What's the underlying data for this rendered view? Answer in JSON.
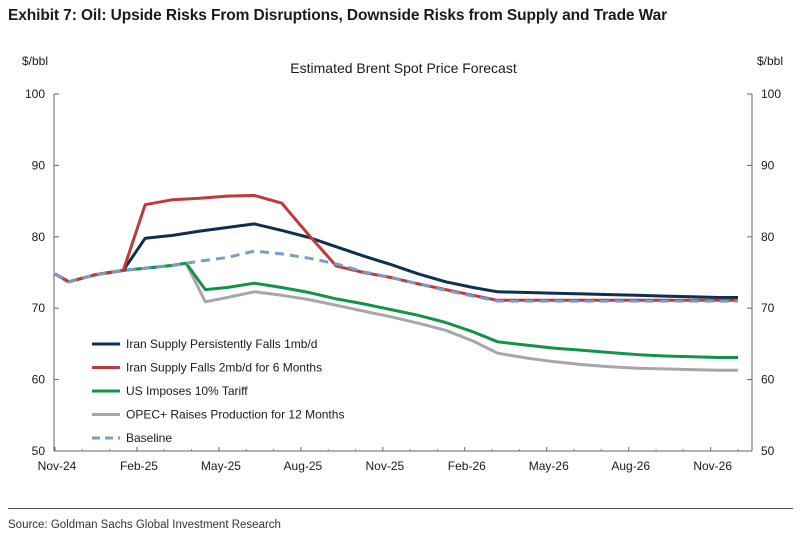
{
  "header": {
    "exhibit_title": "Exhibit 7: Oil: Upside Risks From Disruptions, Downside Risks from Supply and Trade War"
  },
  "footer": {
    "source": "Source: Goldman Sachs Global Investment Research"
  },
  "chart_data": {
    "type": "line",
    "title": "Estimated Brent Spot Price Forecast",
    "ylabel_left": "$/bbl",
    "ylabel_right": "$/bbl",
    "ylim": [
      50,
      100
    ],
    "yticks": [
      50,
      60,
      70,
      80,
      90,
      100
    ],
    "x_ticks": [
      "Nov-24",
      "Feb-25",
      "May-25",
      "Aug-25",
      "Nov-25",
      "Feb-26",
      "May-26",
      "Aug-26",
      "Nov-26"
    ],
    "x_range_months": [
      0,
      25
    ],
    "grid": false,
    "legend_position": "bottom-left",
    "series": [
      {
        "name": "Iran Supply Persistently Falls 1mb/d",
        "color": "#0d3050",
        "dash": false,
        "points": [
          [
            0,
            74.8
          ],
          [
            0.5,
            73.7
          ],
          [
            1.5,
            74.7
          ],
          [
            2.5,
            75.3
          ],
          [
            3.3,
            79.8
          ],
          [
            4.3,
            80.2
          ],
          [
            5.3,
            80.8
          ],
          [
            6.3,
            81.3
          ],
          [
            7.3,
            81.8
          ],
          [
            8.3,
            80.9
          ],
          [
            9.3,
            79.9
          ],
          [
            10.3,
            78.6
          ],
          [
            11.3,
            77.3
          ],
          [
            12.3,
            76.1
          ],
          [
            13.3,
            74.8
          ],
          [
            14.3,
            73.7
          ],
          [
            15.3,
            72.9
          ],
          [
            16.2,
            72.3
          ],
          [
            17.3,
            72.2
          ],
          [
            18.3,
            72.1
          ],
          [
            19.3,
            72.0
          ],
          [
            20.3,
            71.9
          ],
          [
            21.3,
            71.8
          ],
          [
            22.3,
            71.7
          ],
          [
            23.3,
            71.6
          ],
          [
            24.3,
            71.5
          ],
          [
            25,
            71.5
          ]
        ]
      },
      {
        "name": "Iran Supply Falls 2mb/d for 6 Months",
        "color": "#c0393b",
        "dash": false,
        "points": [
          [
            0,
            74.8
          ],
          [
            0.5,
            73.7
          ],
          [
            1.5,
            74.7
          ],
          [
            2.5,
            75.3
          ],
          [
            3.3,
            84.5
          ],
          [
            4.3,
            85.2
          ],
          [
            5.3,
            85.4
          ],
          [
            6.3,
            85.7
          ],
          [
            7.3,
            85.8
          ],
          [
            8.3,
            84.7
          ],
          [
            9.3,
            80.2
          ],
          [
            10.3,
            75.9
          ],
          [
            11.3,
            75.0
          ],
          [
            12.3,
            74.3
          ],
          [
            13.3,
            73.4
          ],
          [
            14.3,
            72.6
          ],
          [
            15.3,
            71.8
          ],
          [
            16.2,
            71.1
          ],
          [
            17.3,
            71.1
          ],
          [
            18.3,
            71.1
          ],
          [
            19.3,
            71.1
          ],
          [
            20.3,
            71.1
          ],
          [
            21.3,
            71.1
          ],
          [
            22.3,
            71.1
          ],
          [
            23.3,
            71.1
          ],
          [
            24.3,
            71.1
          ],
          [
            25,
            71.1
          ]
        ]
      },
      {
        "name": "US Imposes 10% Tariff",
        "color": "#13924a",
        "dash": false,
        "points": [
          [
            0,
            74.8
          ],
          [
            0.5,
            73.7
          ],
          [
            1.5,
            74.7
          ],
          [
            2.5,
            75.3
          ],
          [
            3.3,
            75.6
          ],
          [
            4.3,
            76.0
          ],
          [
            4.8,
            76.3
          ],
          [
            5.5,
            72.6
          ],
          [
            6.3,
            72.9
          ],
          [
            7.3,
            73.5
          ],
          [
            8.3,
            72.9
          ],
          [
            9.3,
            72.2
          ],
          [
            10.3,
            71.3
          ],
          [
            11.3,
            70.6
          ],
          [
            12.3,
            69.8
          ],
          [
            13.3,
            69.0
          ],
          [
            14.3,
            68.0
          ],
          [
            15.3,
            66.7
          ],
          [
            16.2,
            65.3
          ],
          [
            17.3,
            64.8
          ],
          [
            18.3,
            64.4
          ],
          [
            19.3,
            64.1
          ],
          [
            20.3,
            63.8
          ],
          [
            21.3,
            63.5
          ],
          [
            22.3,
            63.3
          ],
          [
            23.3,
            63.2
          ],
          [
            24.3,
            63.1
          ],
          [
            25,
            63.1
          ]
        ]
      },
      {
        "name": "OPEC+ Raises Production for 12 Months",
        "color": "#a7a7a7",
        "dash": false,
        "points": [
          [
            0,
            74.8
          ],
          [
            0.5,
            73.7
          ],
          [
            1.5,
            74.7
          ],
          [
            2.5,
            75.3
          ],
          [
            3.3,
            75.6
          ],
          [
            4.3,
            76.0
          ],
          [
            4.8,
            76.3
          ],
          [
            5.5,
            70.9
          ],
          [
            6.3,
            71.5
          ],
          [
            7.3,
            72.3
          ],
          [
            8.3,
            71.8
          ],
          [
            9.3,
            71.2
          ],
          [
            10.3,
            70.4
          ],
          [
            11.3,
            69.6
          ],
          [
            12.3,
            68.8
          ],
          [
            13.3,
            67.9
          ],
          [
            14.3,
            66.9
          ],
          [
            15.3,
            65.4
          ],
          [
            16.2,
            63.7
          ],
          [
            17.3,
            63.0
          ],
          [
            18.3,
            62.5
          ],
          [
            19.3,
            62.1
          ],
          [
            20.3,
            61.8
          ],
          [
            21.3,
            61.6
          ],
          [
            22.3,
            61.5
          ],
          [
            23.3,
            61.4
          ],
          [
            24.3,
            61.3
          ],
          [
            25,
            61.3
          ]
        ]
      },
      {
        "name": "Baseline",
        "color": "#7a9cc6",
        "dash": true,
        "points": [
          [
            0,
            74.8
          ],
          [
            0.5,
            73.7
          ],
          [
            1.5,
            74.7
          ],
          [
            2.5,
            75.3
          ],
          [
            3.3,
            75.6
          ],
          [
            4.3,
            76.0
          ],
          [
            5.3,
            76.6
          ],
          [
            6.3,
            77.1
          ],
          [
            7.3,
            78.0
          ],
          [
            8.3,
            77.6
          ],
          [
            9.3,
            77.0
          ],
          [
            10.3,
            76.2
          ],
          [
            11.3,
            75.1
          ],
          [
            12.3,
            74.3
          ],
          [
            13.3,
            73.4
          ],
          [
            14.3,
            72.5
          ],
          [
            15.3,
            71.7
          ],
          [
            16.2,
            71.0
          ],
          [
            17.3,
            71.0
          ],
          [
            18.3,
            71.0
          ],
          [
            19.3,
            71.0
          ],
          [
            20.3,
            71.0
          ],
          [
            21.3,
            71.0
          ],
          [
            22.3,
            71.0
          ],
          [
            23.3,
            71.0
          ],
          [
            24.3,
            71.0
          ],
          [
            25,
            71.0
          ]
        ]
      }
    ]
  }
}
